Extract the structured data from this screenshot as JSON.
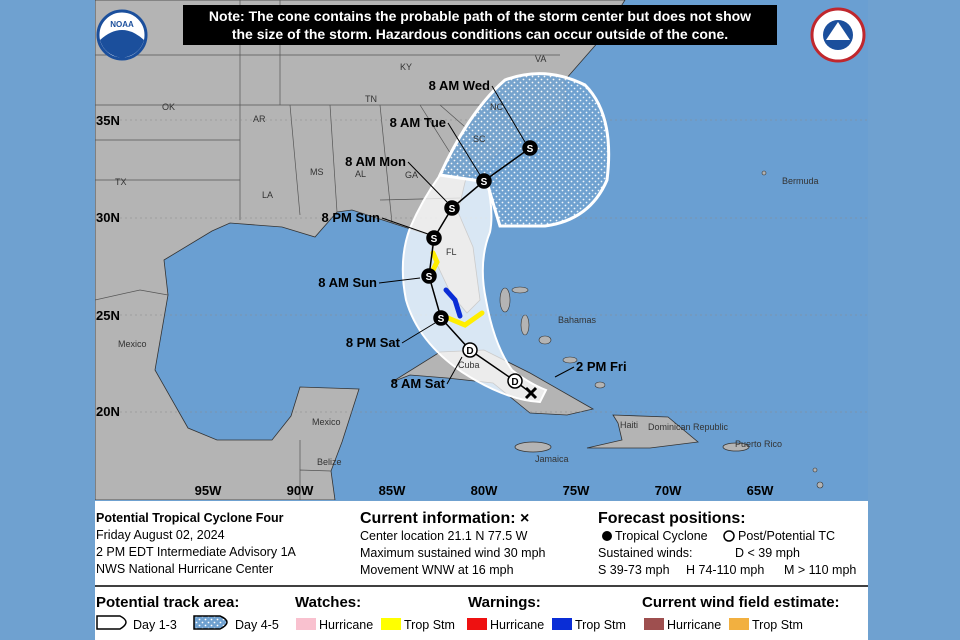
{
  "note": [
    "Note: The cone contains the probable path of the storm center but does not show",
    "the size of the storm. Hazardous conditions can occur outside of the cone."
  ],
  "logo": "NOAA",
  "latitude_labels": [
    "35N",
    "30N",
    "25N",
    "20N"
  ],
  "longitude_labels": [
    "95W",
    "90W",
    "85W",
    "80W",
    "75W",
    "70W",
    "65W"
  ],
  "place_labels": [
    "KY",
    "VA",
    "TN",
    "NC",
    "OK",
    "AR",
    "SC",
    "MS",
    "AL",
    "GA",
    "TX",
    "LA",
    "FL",
    "Bermuda",
    "Bahamas",
    "Mexico",
    "Mexico",
    "Cuba",
    "Belize",
    "Jamaica",
    "Haiti",
    "Dominican Republic",
    "Puerto Rico"
  ],
  "forecast_points": [
    {
      "time": "2 PM Fri",
      "marker": "D"
    },
    {
      "time": "8 AM Sat",
      "marker": "D"
    },
    {
      "time": "8 PM Sat",
      "marker": "S"
    },
    {
      "time": "8 AM Sun",
      "marker": "S"
    },
    {
      "time": "8 PM Sun",
      "marker": "S"
    },
    {
      "time": "8 AM Mon",
      "marker": "S"
    },
    {
      "time": "8 AM Tue",
      "marker": "S"
    },
    {
      "time": "8 AM Wed",
      "marker": "S"
    }
  ],
  "info": {
    "storm": "Potential Tropical Cyclone Four",
    "date": "Friday August 02, 2024",
    "advisory": "2 PM EDT Intermediate Advisory 1A",
    "center": "NWS National Hurricane Center"
  },
  "current": {
    "title": "Current information: ×",
    "location": "Center location 21.1 N 77.5 W",
    "wind": "Maximum sustained wind 30 mph",
    "movement": "Movement WNW at 16 mph"
  },
  "forecast_legend": {
    "title": "Forecast positions:",
    "tropical": "Tropical Cyclone",
    "post": "Post/Potential TC",
    "winds": "Sustained winds:",
    "d": "D < 39 mph",
    "s": "S 39-73 mph",
    "h": "H 74-110 mph",
    "m": "M > 110 mph"
  },
  "track_area": {
    "title": "Potential track area:",
    "day13": "Day 1-3",
    "day45": "Day 4-5"
  },
  "watches": {
    "title": "Watches:",
    "hurricane": "Hurricane",
    "tropical_storm": "Trop Stm"
  },
  "warnings": {
    "title": "Warnings:",
    "hurricane": "Hurricane",
    "tropical_storm": "Trop Stm"
  },
  "wind_field": {
    "title": "Current wind field estimate:",
    "hurricane": "Hurricane",
    "tropical_storm": "Trop Stm"
  }
}
